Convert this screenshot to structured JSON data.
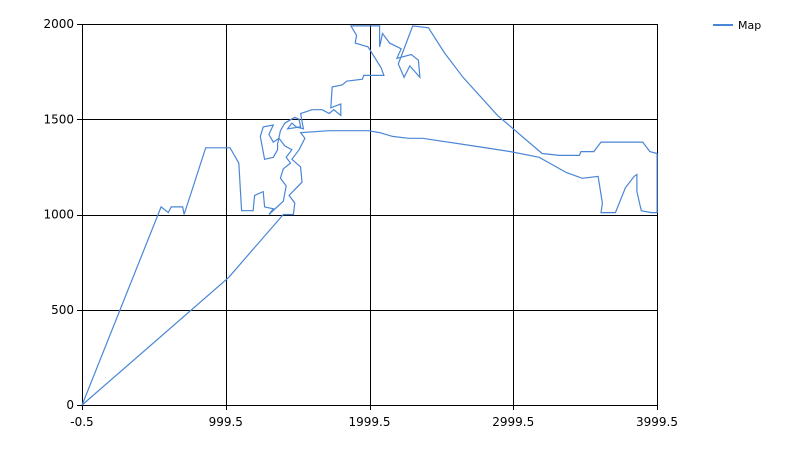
{
  "chart_data": {
    "type": "line",
    "title": "",
    "xlabel": "",
    "ylabel": "",
    "xlim": [
      -0.5,
      3999.5
    ],
    "ylim": [
      0,
      2000
    ],
    "x_ticks": [
      "-0.5",
      "999.5",
      "1999.5",
      "2999.5",
      "3999.5"
    ],
    "y_ticks": [
      "0",
      "500",
      "1000",
      "1500",
      "2000"
    ],
    "grid": true,
    "legend": "top-right",
    "series": [
      {
        "name": "Map",
        "color": "#4a86d6",
        "points": [
          [
            0,
            0
          ],
          [
            550,
            1040
          ],
          [
            600,
            1010
          ],
          [
            620,
            1040
          ],
          [
            700,
            1040
          ],
          [
            710,
            1000
          ],
          [
            860,
            1350
          ],
          [
            1030,
            1350
          ],
          [
            1090,
            1270
          ],
          [
            1110,
            1020
          ],
          [
            1190,
            1020
          ],
          [
            1200,
            1100
          ],
          [
            1260,
            1120
          ],
          [
            1270,
            1040
          ],
          [
            1330,
            1030
          ],
          [
            1300,
            1000
          ],
          [
            1400,
            1070
          ],
          [
            1420,
            1150
          ],
          [
            1380,
            1190
          ],
          [
            1400,
            1240
          ],
          [
            1450,
            1270
          ],
          [
            1420,
            1300
          ],
          [
            1460,
            1340
          ],
          [
            1410,
            1360
          ],
          [
            1370,
            1400
          ],
          [
            1330,
            1380
          ],
          [
            1300,
            1420
          ],
          [
            1330,
            1470
          ],
          [
            1260,
            1460
          ],
          [
            1240,
            1410
          ],
          [
            1270,
            1290
          ],
          [
            1330,
            1300
          ],
          [
            1360,
            1340
          ],
          [
            1360,
            1370
          ],
          [
            1380,
            1440
          ],
          [
            1410,
            1480
          ],
          [
            1480,
            1510
          ],
          [
            1510,
            1500
          ],
          [
            1520,
            1460
          ],
          [
            1430,
            1450
          ],
          [
            1460,
            1480
          ],
          [
            1490,
            1460
          ],
          [
            1540,
            1450
          ],
          [
            1520,
            1530
          ],
          [
            1600,
            1550
          ],
          [
            1670,
            1550
          ],
          [
            1720,
            1530
          ],
          [
            1750,
            1550
          ],
          [
            1800,
            1520
          ],
          [
            1800,
            1580
          ],
          [
            1730,
            1560
          ],
          [
            1740,
            1670
          ],
          [
            1810,
            1680
          ],
          [
            1840,
            1700
          ],
          [
            1950,
            1710
          ],
          [
            1960,
            1730
          ],
          [
            2100,
            1730
          ],
          [
            2080,
            1770
          ],
          [
            1990,
            1880
          ],
          [
            1900,
            1900
          ],
          [
            1910,
            1940
          ],
          [
            1870,
            1990
          ],
          [
            2070,
            1990
          ],
          [
            2070,
            1880
          ],
          [
            2090,
            1950
          ],
          [
            2140,
            1900
          ],
          [
            2220,
            1870
          ],
          [
            2190,
            1820
          ],
          [
            2290,
            1840
          ],
          [
            2340,
            1810
          ],
          [
            2350,
            1720
          ],
          [
            2280,
            1780
          ],
          [
            2240,
            1720
          ],
          [
            2200,
            1790
          ],
          [
            2300,
            1990
          ],
          [
            2410,
            1980
          ],
          [
            2520,
            1850
          ],
          [
            2650,
            1720
          ],
          [
            2890,
            1520
          ],
          [
            3200,
            1320
          ],
          [
            3320,
            1310
          ],
          [
            3460,
            1310
          ],
          [
            3470,
            1330
          ],
          [
            3560,
            1330
          ],
          [
            3610,
            1380
          ],
          [
            3900,
            1380
          ],
          [
            3950,
            1330
          ],
          [
            4000,
            1320
          ],
          [
            4000,
            1010
          ],
          [
            3960,
            1010
          ],
          [
            3890,
            1020
          ],
          [
            3860,
            1120
          ],
          [
            3860,
            1210
          ],
          [
            3840,
            1200
          ],
          [
            3780,
            1140
          ],
          [
            3710,
            1010
          ],
          [
            3610,
            1010
          ],
          [
            3620,
            1060
          ],
          [
            3590,
            1200
          ],
          [
            3480,
            1190
          ],
          [
            3370,
            1220
          ],
          [
            3180,
            1300
          ],
          [
            2980,
            1330
          ],
          [
            2720,
            1360
          ],
          [
            2370,
            1400
          ],
          [
            2270,
            1400
          ],
          [
            2160,
            1410
          ],
          [
            2070,
            1430
          ],
          [
            1990,
            1440
          ],
          [
            1720,
            1440
          ],
          [
            1520,
            1430
          ],
          [
            1550,
            1400
          ],
          [
            1510,
            1340
          ],
          [
            1460,
            1290
          ],
          [
            1520,
            1250
          ],
          [
            1530,
            1170
          ],
          [
            1440,
            1100
          ],
          [
            1480,
            1060
          ],
          [
            1470,
            1000
          ],
          [
            1400,
            1000
          ],
          [
            1020,
            670
          ],
          [
            0,
            0
          ]
        ]
      }
    ]
  }
}
